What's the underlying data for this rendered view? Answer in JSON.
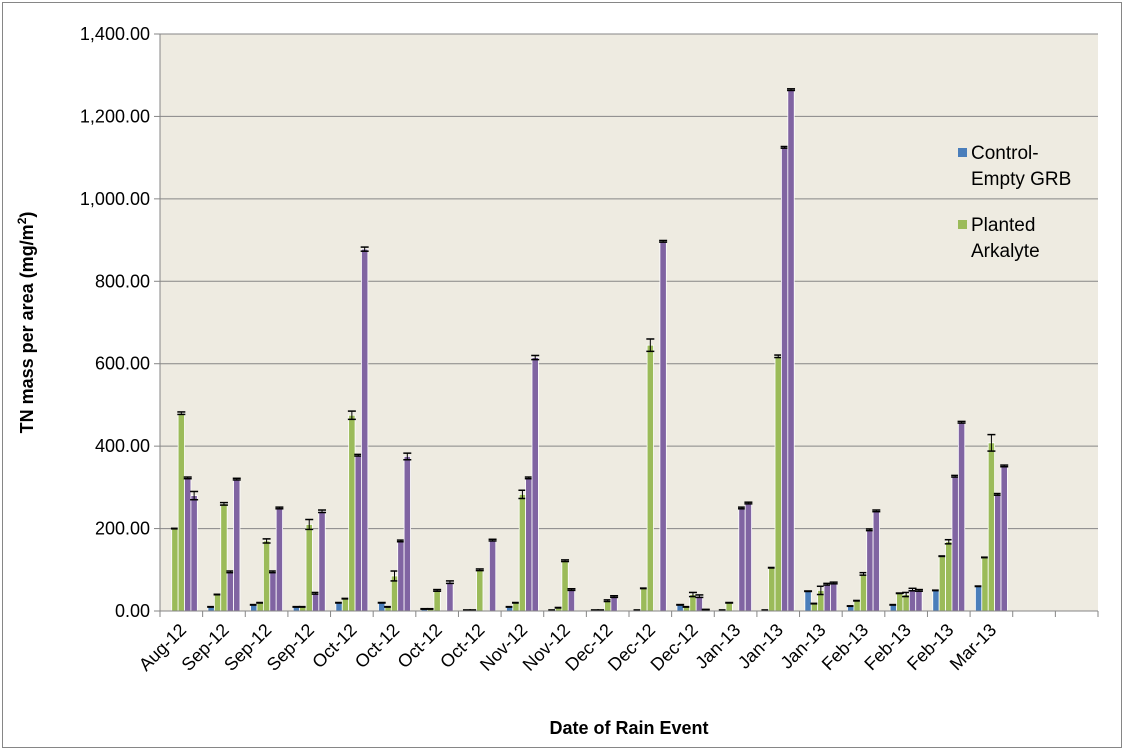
{
  "chart_data": {
    "type": "bar",
    "xlabel": "Date of Rain Event",
    "ylabel_main": "TN mass per area (mg/m",
    "ylabel_sup": "2",
    "ylabel_end": ")",
    "ylim": [
      0,
      1400
    ],
    "y_ticks": [
      "0.00",
      "200.00",
      "400.00",
      "600.00",
      "800.00",
      "1,000.00",
      "1,200.00",
      "1,400.00"
    ],
    "y_tick_values": [
      0,
      200,
      400,
      600,
      800,
      1000,
      1200,
      1400
    ],
    "plot_background": "#eeebe1",
    "grid": true,
    "legend_position": "right",
    "categories": [
      "Aug-12",
      "Sep-12",
      "Sep-12",
      "Sep-12",
      "Oct-12",
      "Oct-12",
      "Oct-12",
      "Oct-12",
      "Nov-12",
      "Nov-12",
      "Dec-12",
      "Dec-12",
      "Dec-12",
      "Jan-13",
      "Jan-13",
      "Jan-13",
      "Feb-13",
      "Feb-13",
      "Feb-13",
      "Mar-13"
    ],
    "series": [
      {
        "name": "Control-Empty GRB",
        "legend_lines": [
          "Control-",
          "Empty GRB"
        ],
        "color": "#4a7ebb",
        "values": [
          0,
          10,
          15,
          10,
          20,
          20,
          5,
          2,
          10,
          2,
          2,
          2,
          15,
          2,
          2,
          48,
          12,
          15,
          50,
          60
        ],
        "errors": [
          0,
          0,
          0,
          0,
          0,
          0,
          0,
          0,
          0,
          0,
          0,
          0,
          0,
          0,
          0,
          0,
          0,
          0,
          0,
          0
        ]
      },
      {
        "name": "Planted Arkalyte",
        "legend_lines": [
          "Planted",
          "Arkalyte"
        ],
        "color": "#9bbb59",
        "values": [
          200,
          40,
          20,
          10,
          30,
          10,
          5,
          2,
          20,
          8,
          2,
          55,
          10,
          20,
          105,
          18,
          25,
          43,
          133,
          130
        ],
        "errors": [
          0,
          0,
          0,
          0,
          0,
          0,
          0,
          0,
          0,
          0,
          0,
          0,
          0,
          0,
          0,
          0,
          0,
          0,
          0,
          0
        ]
      },
      {
        "name": "",
        "legend_lines": [],
        "color": "#9bbb59",
        "values": [
          480,
          260,
          170,
          210,
          475,
          85,
          50,
          100,
          283,
          122,
          25,
          645,
          40,
          0,
          618,
          50,
          90,
          40,
          168,
          408
        ],
        "errors": [
          3,
          3,
          5,
          12,
          10,
          12,
          2,
          2,
          10,
          2,
          2,
          15,
          5,
          0,
          3,
          10,
          3,
          5,
          5,
          20
        ]
      },
      {
        "name": "",
        "legend_lines": [],
        "color": "#8064a2",
        "values": [
          323,
          95,
          95,
          43,
          378,
          170,
          0,
          0,
          323,
          52,
          35,
          0,
          36,
          250,
          1125,
          65,
          197,
          52,
          327,
          283
        ],
        "errors": [
          2,
          2,
          2,
          2,
          2,
          2,
          0,
          0,
          2,
          2,
          2,
          0,
          3,
          2,
          2,
          2,
          2,
          3,
          2,
          2
        ]
      },
      {
        "name": "",
        "legend_lines": [],
        "color": "#8064a2",
        "values": [
          280,
          320,
          250,
          242,
          878,
          375,
          70,
          172,
          615,
          0,
          0,
          897,
          3,
          262,
          1265,
          68,
          243,
          50,
          458,
          352
        ],
        "errors": [
          10,
          2,
          2,
          3,
          5,
          8,
          3,
          2,
          5,
          0,
          0,
          2,
          1,
          2,
          2,
          2,
          2,
          2,
          2,
          2
        ]
      }
    ]
  }
}
